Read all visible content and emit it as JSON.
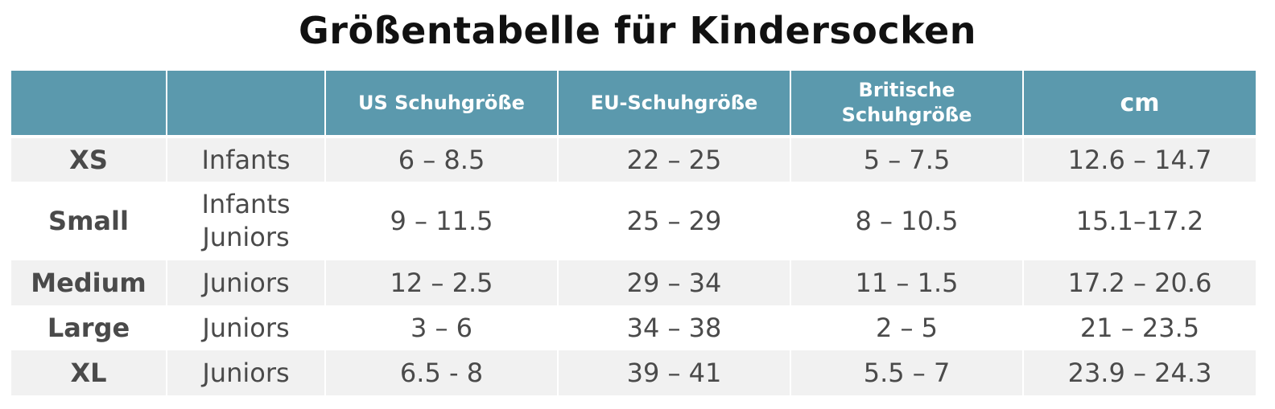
{
  "title": "Größentabelle für Kindersocken",
  "header": {
    "col0": "",
    "col1": "",
    "us": "US Schuhgröße",
    "eu": "EU-Schuhgröße",
    "uk_line1": "Britische",
    "uk_line2": "Schuhgröße",
    "cm": "cm"
  },
  "rows": [
    {
      "size": "XS",
      "age": [
        "Infants"
      ],
      "us": "6 – 8.5",
      "eu": "22 – 25",
      "uk": "5 – 7.5",
      "cm": "12.6 – 14.7"
    },
    {
      "size": "Small",
      "age": [
        "Infants",
        "Juniors"
      ],
      "us": "9 – 11.5",
      "eu": "25 – 29",
      "uk": "8 – 10.5",
      "cm": "15.1–17.2"
    },
    {
      "size": "Medium",
      "age": [
        "Juniors"
      ],
      "us": "12 – 2.5",
      "eu": "29 – 34",
      "uk": "11 – 1.5",
      "cm": "17.2 – 20.6"
    },
    {
      "size": "Large",
      "age": [
        "Juniors"
      ],
      "us": "3 – 6",
      "eu": "34 – 38",
      "uk": "2 – 5",
      "cm": "21 – 23.5"
    },
    {
      "size": "XL",
      "age": [
        "Juniors"
      ],
      "us": "6.5 - 8",
      "eu": "39 – 41",
      "uk": "5.5 – 7",
      "cm": "23.9 – 24.3"
    }
  ],
  "colors": {
    "header_bg": "#5b99ad",
    "header_text": "#ffffff",
    "row_shaded": "#f1f1f1",
    "row_plain": "#ffffff",
    "body_text": "#4a4a4a",
    "title_text": "#111111"
  }
}
